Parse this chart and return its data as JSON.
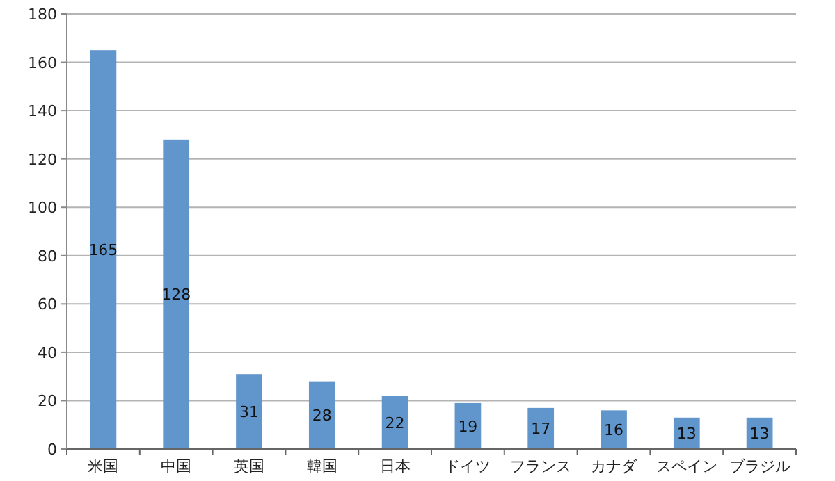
{
  "chart_data": {
    "type": "bar",
    "categories": [
      "米国",
      "中国",
      "英国",
      "韓国",
      "日本",
      "ドイツ",
      "フランス",
      "カナダ",
      "スペイン",
      "ブラジル"
    ],
    "values": [
      165,
      128,
      31,
      28,
      22,
      19,
      17,
      16,
      13,
      13
    ],
    "color": "#6196cc",
    "ylim": [
      0,
      180
    ],
    "yticks": [
      0,
      20,
      40,
      60,
      80,
      100,
      120,
      140,
      160,
      180
    ],
    "grid": "y",
    "data_labels": true
  }
}
